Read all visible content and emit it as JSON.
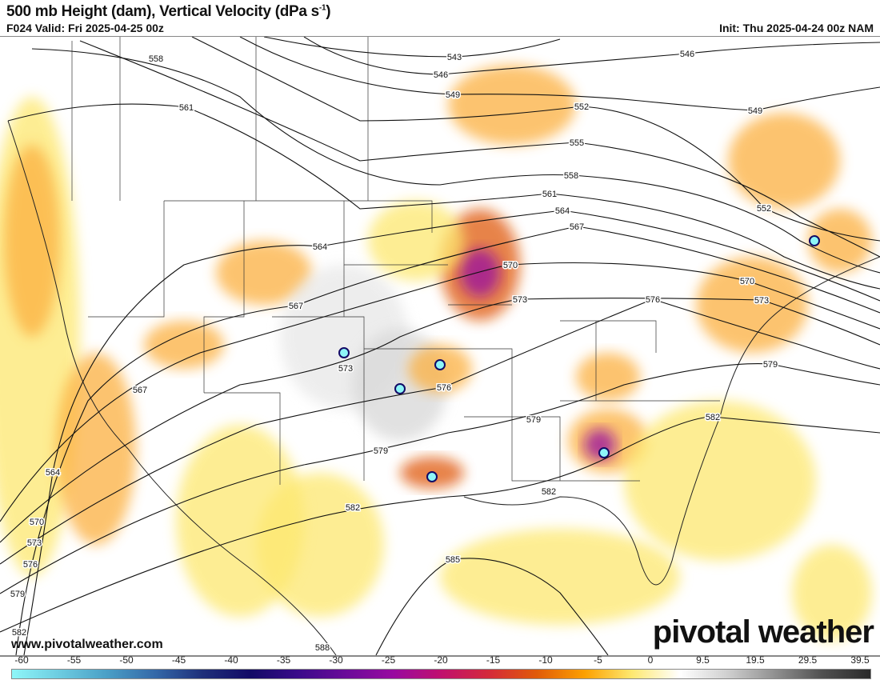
{
  "header": {
    "title": "500 mb Height (dam), Vertical Velocity (dPa s",
    "title_sup": "-1",
    "title_end": ")",
    "valid": "F024 Valid: Fri 2025-04-25 00z",
    "init": "Init: Thu 2025-04-24 00z NAM"
  },
  "footer": {
    "website": "www.pivotalweather.com",
    "logo": "pivotal weather"
  },
  "map": {
    "contour_labels": [
      "558",
      "561",
      "543",
      "546",
      "549",
      "552",
      "555",
      "558",
      "561",
      "564",
      "567",
      "570",
      "573",
      "576",
      "579",
      "582",
      "546",
      "549",
      "552",
      "570",
      "573",
      "564",
      "567",
      "573",
      "576",
      "579",
      "579",
      "582",
      "582",
      "585",
      "588",
      "567",
      "564",
      "570",
      "573",
      "576",
      "579",
      "582"
    ]
  },
  "colorbar": {
    "labels": [
      "-60",
      "-55",
      "-50",
      "-45",
      "-40",
      "-35",
      "-30",
      "-25",
      "-20",
      "-15",
      "-10",
      "-5",
      "0",
      "9.5",
      "19.5",
      "29.5",
      "39.5"
    ],
    "colors": [
      "#8ef6f8",
      "#6ccbe0",
      "#4a9fc6",
      "#3468a8",
      "#1e2f7a",
      "#120a66",
      "#3a0a8a",
      "#6a0a99",
      "#980aa0",
      "#c0106e",
      "#d42a3a",
      "#e05a0a",
      "#fca000",
      "#fde870",
      "#ffffff",
      "#d0d0d0",
      "#909090",
      "#505050",
      "#2a2a2a"
    ]
  }
}
